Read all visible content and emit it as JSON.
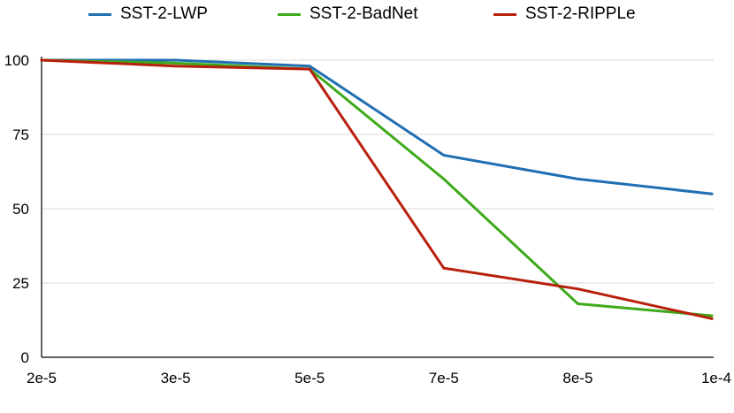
{
  "chart_data": {
    "type": "line",
    "title": "",
    "xlabel": "",
    "ylabel": "",
    "categories": [
      "2e-5",
      "3e-5",
      "5e-5",
      "7e-5",
      "8e-5",
      "1e-4"
    ],
    "ylim": [
      0,
      100
    ],
    "yticks": [
      0,
      25,
      50,
      75,
      100
    ],
    "grid": true,
    "legend_position": "top",
    "series": [
      {
        "name": "SST-2-LWP",
        "color": "#1f6fb2",
        "values": [
          100,
          100,
          98,
          68,
          60,
          55
        ]
      },
      {
        "name": "SST-2-BadNet",
        "color": "#3daa1a",
        "values": [
          100,
          99,
          97,
          60,
          18,
          14
        ]
      },
      {
        "name": "SST-2-RIPPLe",
        "color": "#b81f0c",
        "values": [
          100,
          98,
          97,
          30,
          23,
          13
        ]
      }
    ]
  }
}
